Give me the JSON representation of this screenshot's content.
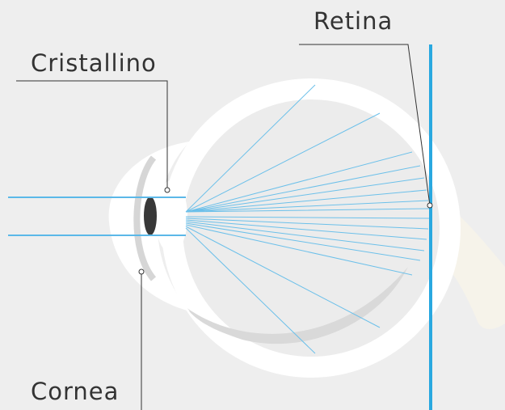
{
  "labels": {
    "retina": "Retina",
    "lens": "Cristallino",
    "cornea": "Cornea"
  }
}
